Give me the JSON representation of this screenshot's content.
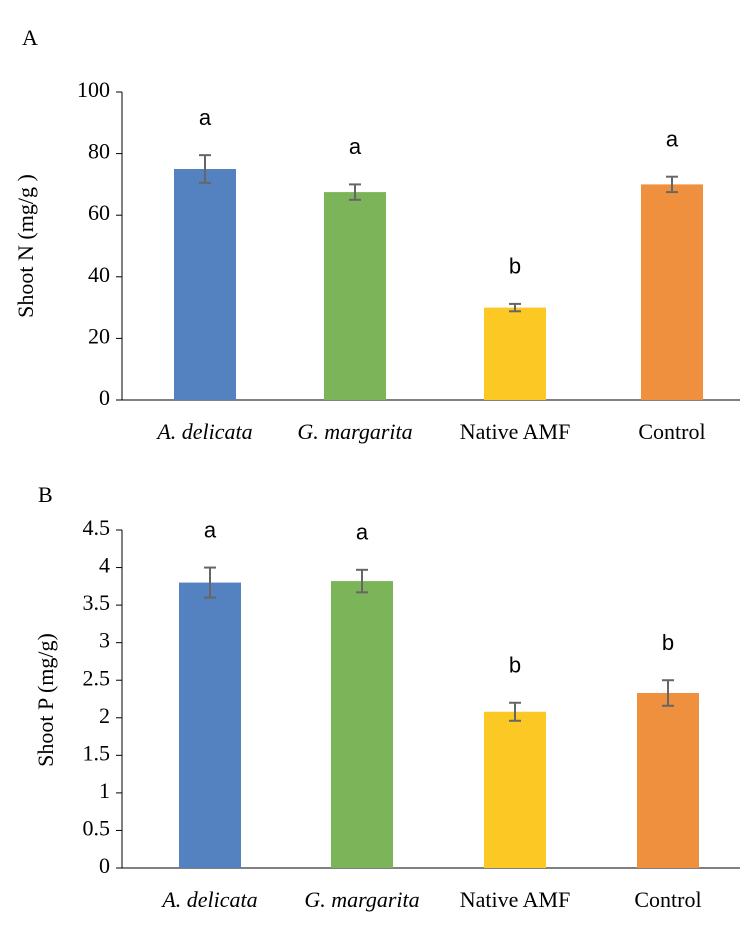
{
  "chart_data": [
    {
      "type": "bar",
      "panel": "A",
      "ylabel": "Shoot N  (mg/g )",
      "categories": [
        "A. delicata",
        "G. margarita",
        "Native AMF",
        "Control"
      ],
      "values": [
        75,
        67.5,
        30,
        70
      ],
      "errors": [
        4.5,
        2.5,
        1.2,
        2.5
      ],
      "annotations": [
        "a",
        "a",
        "b",
        "a"
      ],
      "colors": [
        "#5482c0",
        "#7cb45a",
        "#fcc823",
        "#ef903f"
      ],
      "ylim": [
        0,
        100
      ],
      "yticks": [
        0,
        20,
        40,
        60,
        80,
        100
      ]
    },
    {
      "type": "bar",
      "panel": "B",
      "ylabel": "Shoot P (mg/g)",
      "categories": [
        "A. delicata",
        "G. margarita",
        "Native AMF",
        "Control"
      ],
      "values": [
        3.8,
        3.82,
        2.08,
        2.33
      ],
      "errors": [
        0.2,
        0.15,
        0.12,
        0.17
      ],
      "annotations": [
        "a",
        "a",
        "b",
        "b"
      ],
      "colors": [
        "#5482c0",
        "#7cb45a",
        "#fcc823",
        "#ef903f"
      ],
      "ylim": [
        0,
        4.5
      ],
      "yticks": [
        0,
        0.5,
        1,
        1.5,
        2,
        2.5,
        3,
        3.5,
        4,
        4.5
      ]
    }
  ]
}
